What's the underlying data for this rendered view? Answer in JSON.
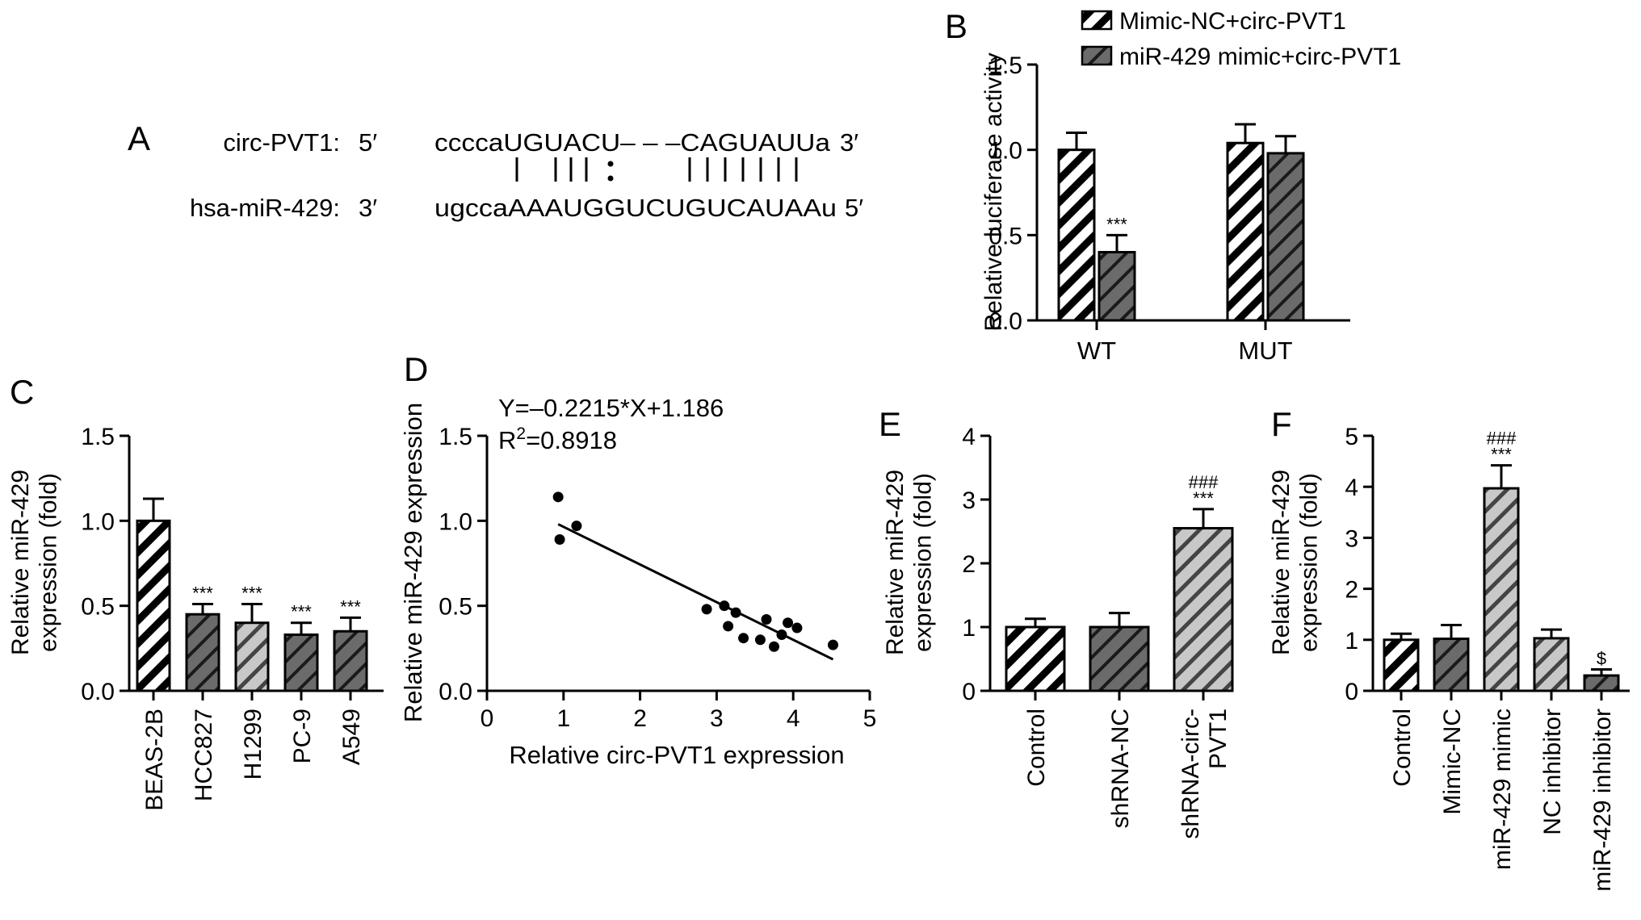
{
  "panels": {
    "A": {
      "letter": "A",
      "circ_label": "circ-PVT1:",
      "circ_end5": "5′",
      "circ_seq": "ccccaUGUACU– – –CAGUAUUa",
      "circ_end3": "3′",
      "mir_label": "hsa-miR-429:",
      "mir_end3": "3′",
      "mir_seq": "ugccaAAAUGGUCUGUCAUAAu",
      "mir_end5": "5′"
    },
    "B": {
      "letter": "B"
    },
    "C": {
      "letter": "C"
    },
    "D": {
      "letter": "D",
      "equation": "Y=–0.2215*X+1.186",
      "r2_prefix": "R",
      "r2_sup": "2",
      "r2_value": "=0.8918"
    },
    "E": {
      "letter": "E"
    },
    "F": {
      "letter": "F"
    }
  },
  "colors": {
    "dark_fill": "#6b6b6b",
    "light_fill": "#c8c8c8",
    "white_fill": "#ffffff",
    "ink": "#000000"
  },
  "chart_data": [
    {
      "panel": "B",
      "type": "bar",
      "categories": [
        "WT",
        "MUT"
      ],
      "series": [
        {
          "name": "Mimic-NC+circ-PVT1",
          "values": [
            1.0,
            1.04
          ],
          "errors": [
            0.1,
            0.11
          ],
          "fill": "white-hatch"
        },
        {
          "name": "miR-429 mimic+circ-PVT1",
          "values": [
            0.4,
            0.98
          ],
          "errors": [
            0.1,
            0.1
          ],
          "fill": "dark-hatch"
        }
      ],
      "annotations": [
        [
          "",
          "***"
        ],
        [
          "",
          ""
        ]
      ],
      "ylabel": "Relative luciferase activity",
      "ylim": [
        0,
        1.5
      ],
      "yticks": [
        "0.0",
        "0.5",
        "1.0",
        "1.5"
      ],
      "legend_position": "top"
    },
    {
      "panel": "C",
      "type": "bar",
      "categories": [
        "BEAS-2B",
        "HCC827",
        "H1299",
        "PC-9",
        "A549"
      ],
      "values": [
        1.0,
        0.45,
        0.4,
        0.33,
        0.35
      ],
      "errors": [
        0.13,
        0.06,
        0.11,
        0.07,
        0.08
      ],
      "fills": [
        "white-hatch",
        "dark-hatch",
        "light-hatch",
        "dark-hatch",
        "dark-hatch"
      ],
      "annotations": [
        "",
        "***",
        "***",
        "***",
        "***"
      ],
      "ylabel": "Relative miR-429 expression (fold)",
      "ylim": [
        0,
        1.5
      ],
      "yticks": [
        "0.0",
        "0.5",
        "1.0",
        "1.5"
      ]
    },
    {
      "panel": "D",
      "type": "scatter",
      "x": [
        0.93,
        0.95,
        1.17,
        2.87,
        3.1,
        3.15,
        3.25,
        3.35,
        3.57,
        3.65,
        3.75,
        3.85,
        3.93,
        4.05,
        4.52
      ],
      "y": [
        1.14,
        0.89,
        0.97,
        0.48,
        0.5,
        0.38,
        0.46,
        0.31,
        0.3,
        0.42,
        0.26,
        0.33,
        0.4,
        0.37,
        0.27
      ],
      "fit": {
        "slope": -0.2215,
        "intercept": 1.186,
        "x_range": [
          0.93,
          4.52
        ]
      },
      "xlabel": "Relative circ-PVT1 expression",
      "ylabel": "Relative miR-429 expression",
      "xlim": [
        0,
        5
      ],
      "ylim": [
        0,
        1.5
      ],
      "xticks": [
        "0",
        "1",
        "2",
        "3",
        "4",
        "5"
      ],
      "yticks": [
        "0.0",
        "0.5",
        "1.0",
        "1.5"
      ]
    },
    {
      "panel": "E",
      "type": "bar",
      "categories": [
        "Control",
        "shRNA-NC",
        "shRNA-circ-PVT1"
      ],
      "category_lines": [
        [
          "Control"
        ],
        [
          "shRNA-NC"
        ],
        [
          "shRNA-circ-",
          "PVT1"
        ]
      ],
      "values": [
        1.0,
        1.0,
        2.55
      ],
      "errors": [
        0.13,
        0.22,
        0.3
      ],
      "fills": [
        "white-hatch",
        "dark-hatch",
        "light-hatch"
      ],
      "annotations": [
        [],
        [],
        [
          "###",
          "***"
        ]
      ],
      "ylabel": "Relative miR-429 expression (fold)",
      "ylim": [
        0,
        4
      ],
      "yticks": [
        "0",
        "1",
        "2",
        "3",
        "4"
      ]
    },
    {
      "panel": "F",
      "type": "bar",
      "categories": [
        "Control",
        "Mimic-NC",
        "miR-429 mimic",
        "NC inhibitor",
        "miR-429 inhibitor"
      ],
      "values": [
        1.0,
        1.02,
        3.97,
        1.03,
        0.3
      ],
      "errors": [
        0.12,
        0.27,
        0.45,
        0.17,
        0.12
      ],
      "fills": [
        "white-hatch",
        "dark-hatch",
        "light-hatch",
        "light-hatch",
        "dark-hatch"
      ],
      "annotations": [
        [],
        [],
        [
          "###",
          "***"
        ],
        [],
        [
          "$"
        ]
      ],
      "ylabel": "Relative miR-429 expression (fold)",
      "ylim": [
        0,
        5
      ],
      "yticks": [
        "0",
        "1",
        "2",
        "3",
        "4",
        "5"
      ]
    }
  ]
}
